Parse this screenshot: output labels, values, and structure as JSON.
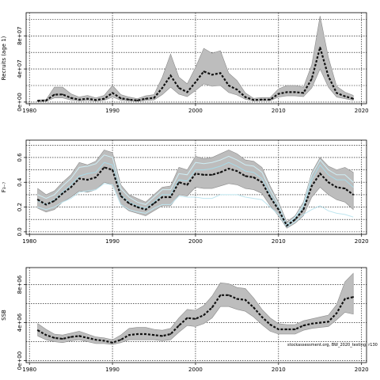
{
  "credit": "stockassessment.org, BW_2020_testing, r130",
  "chart_data": [
    {
      "type": "line",
      "ylabel": "Recruits (age 1)",
      "yticks": [
        0,
        40000000,
        80000000
      ],
      "yticks_minor": [
        20000000,
        60000000,
        100000000
      ],
      "ytick_labels": [
        "0e+00",
        "4e+07",
        "8e+07"
      ],
      "ylim": [
        -2000000,
        108000000
      ],
      "xlim": [
        1979.6,
        2020.6
      ],
      "xticks": [
        1980,
        1990,
        2000,
        2010,
        2020
      ],
      "xtick_labels": [
        "1980",
        "1990",
        "2000",
        "2010",
        "2020"
      ],
      "grid": true,
      "x": [
        1981,
        1982,
        1983,
        1984,
        1985,
        1986,
        1987,
        1988,
        1989,
        1990,
        1991,
        1992,
        1993,
        1994,
        1995,
        1996,
        1997,
        1998,
        1999,
        2000,
        2001,
        2002,
        2003,
        2004,
        2005,
        2006,
        2007,
        2008,
        2009,
        2010,
        2011,
        2012,
        2013,
        2014,
        2015,
        2016,
        2017,
        2018,
        2019
      ],
      "series": [
        {
          "role": "estimate",
          "values": [
            1500000,
            1800000,
            9000000,
            9200000,
            5000000,
            3000000,
            4000000,
            2500000,
            4000000,
            11000000,
            4500000,
            3000000,
            2000000,
            4000000,
            5000000,
            17000000,
            32000000,
            17000000,
            12000000,
            24000000,
            37000000,
            33000000,
            35000000,
            20000000,
            15000000,
            6000000,
            2500000,
            3000000,
            3000000,
            10000000,
            12000000,
            12000000,
            11000000,
            28000000,
            66000000,
            31000000,
            11000000,
            7000000,
            4000000
          ]
        },
        {
          "role": "upper",
          "values": [
            2500000,
            3000000,
            18000000,
            18000000,
            10000000,
            6000000,
            8000000,
            5000000,
            8000000,
            20000000,
            9000000,
            6000000,
            4000000,
            7500000,
            9000000,
            30000000,
            58000000,
            30000000,
            22000000,
            42000000,
            65000000,
            59000000,
            62000000,
            35000000,
            26000000,
            11000000,
            4500000,
            5500000,
            5500000,
            16000000,
            20000000,
            20000000,
            18000000,
            45000000,
            104000000,
            54000000,
            19000000,
            12000000,
            8000000
          ]
        },
        {
          "role": "lower",
          "values": [
            800000,
            1000000,
            5000000,
            5000000,
            2500000,
            1500000,
            2000000,
            1200000,
            2000000,
            6000000,
            2200000,
            1500000,
            1000000,
            2000000,
            2500000,
            9000000,
            18000000,
            9500000,
            6500000,
            14000000,
            22000000,
            19000000,
            20000000,
            11500000,
            8500000,
            3300000,
            1300000,
            1600000,
            1600000,
            6000000,
            7500000,
            7500000,
            6500000,
            17000000,
            40000000,
            18000000,
            6000000,
            4000000,
            2200000
          ]
        }
      ]
    },
    {
      "type": "line",
      "ylabel": "F₃₋₇",
      "yticks": [
        0.0,
        0.2,
        0.4,
        0.6
      ],
      "yticks_minor": [
        0.1,
        0.3,
        0.5,
        0.7
      ],
      "ytick_labels": [
        "0.0",
        "0.2",
        "0.4",
        "0.6"
      ],
      "ylim": [
        -0.02,
        0.74
      ],
      "xlim": [
        1979.6,
        2020.6
      ],
      "xticks": [
        1980,
        1990,
        2000,
        2010,
        2020
      ],
      "xtick_labels": [
        "1980",
        "1990",
        "2000",
        "2010",
        "2020"
      ],
      "grid": true,
      "x": [
        1981,
        1982,
        1983,
        1984,
        1985,
        1986,
        1987,
        1988,
        1989,
        1990,
        1991,
        1992,
        1993,
        1994,
        1995,
        1996,
        1997,
        1998,
        1999,
        2000,
        2001,
        2002,
        2003,
        2004,
        2005,
        2006,
        2007,
        2008,
        2009,
        2010,
        2011,
        2012,
        2013,
        2014,
        2015,
        2016,
        2017,
        2018,
        2019
      ],
      "series": [
        {
          "role": "estimate",
          "values": [
            0.26,
            0.22,
            0.25,
            0.31,
            0.36,
            0.43,
            0.42,
            0.44,
            0.52,
            0.5,
            0.29,
            0.23,
            0.2,
            0.18,
            0.23,
            0.28,
            0.28,
            0.4,
            0.38,
            0.47,
            0.46,
            0.46,
            0.48,
            0.51,
            0.49,
            0.45,
            0.44,
            0.4,
            0.28,
            0.18,
            0.05,
            0.1,
            0.18,
            0.37,
            0.47,
            0.4,
            0.36,
            0.35,
            0.3
          ]
        },
        {
          "role": "upper",
          "values": [
            0.35,
            0.3,
            0.33,
            0.4,
            0.46,
            0.56,
            0.54,
            0.57,
            0.66,
            0.64,
            0.38,
            0.3,
            0.27,
            0.24,
            0.3,
            0.36,
            0.37,
            0.52,
            0.5,
            0.61,
            0.59,
            0.6,
            0.63,
            0.66,
            0.63,
            0.58,
            0.57,
            0.52,
            0.37,
            0.24,
            0.08,
            0.13,
            0.24,
            0.48,
            0.6,
            0.53,
            0.5,
            0.52,
            0.48
          ]
        },
        {
          "role": "lower",
          "values": [
            0.19,
            0.16,
            0.18,
            0.24,
            0.28,
            0.33,
            0.32,
            0.34,
            0.4,
            0.38,
            0.22,
            0.17,
            0.15,
            0.13,
            0.17,
            0.21,
            0.21,
            0.3,
            0.29,
            0.36,
            0.35,
            0.35,
            0.37,
            0.39,
            0.38,
            0.35,
            0.34,
            0.31,
            0.21,
            0.13,
            0.03,
            0.07,
            0.13,
            0.28,
            0.36,
            0.3,
            0.26,
            0.24,
            0.18
          ]
        },
        {
          "role": "age-line",
          "color": "#bfe6f0",
          "values": [
            0.2,
            0.18,
            0.2,
            0.24,
            0.27,
            0.32,
            0.33,
            0.34,
            0.39,
            0.38,
            0.22,
            0.18,
            0.16,
            0.15,
            0.19,
            0.22,
            0.22,
            0.29,
            0.28,
            0.28,
            0.27,
            0.27,
            0.3,
            0.3,
            0.3,
            0.28,
            0.27,
            0.26,
            0.2,
            0.14,
            0.04,
            0.08,
            0.14,
            0.18,
            0.21,
            0.17,
            0.15,
            0.14,
            0.12
          ]
        },
        {
          "role": "age-line",
          "color": "#cfeef5",
          "values": [
            0.3,
            0.27,
            0.3,
            0.37,
            0.43,
            0.52,
            0.53,
            0.55,
            0.62,
            0.6,
            0.35,
            0.28,
            0.24,
            0.22,
            0.28,
            0.34,
            0.34,
            0.47,
            0.46,
            0.56,
            0.55,
            0.56,
            0.58,
            0.61,
            0.58,
            0.54,
            0.53,
            0.48,
            0.34,
            0.22,
            0.06,
            0.12,
            0.22,
            0.46,
            0.58,
            0.5,
            0.46,
            0.46,
            0.4
          ]
        },
        {
          "role": "age-line",
          "color": "#a8dbe8",
          "values": [
            0.25,
            0.22,
            0.26,
            0.32,
            0.38,
            0.45,
            0.47,
            0.48,
            0.56,
            0.54,
            0.3,
            0.24,
            0.21,
            0.19,
            0.24,
            0.3,
            0.3,
            0.42,
            0.41,
            0.5,
            0.5,
            0.51,
            0.53,
            0.56,
            0.53,
            0.49,
            0.48,
            0.43,
            0.3,
            0.19,
            0.05,
            0.11,
            0.2,
            0.42,
            0.54,
            0.46,
            0.42,
            0.42,
            0.36
          ]
        }
      ]
    },
    {
      "type": "line",
      "ylabel": "SSB",
      "yticks": [
        0,
        4000000,
        8000000
      ],
      "yticks_minor": [
        2000000,
        6000000
      ],
      "ytick_labels": [
        "0e+00",
        "4e+06",
        "8e+06"
      ],
      "ylim": [
        -200000,
        9800000
      ],
      "xlim": [
        1979.6,
        2020.6
      ],
      "xticks": [
        1980,
        1990,
        2000,
        2010,
        2020
      ],
      "xtick_labels": [
        "1980",
        "1990",
        "2000",
        "2010",
        "2020"
      ],
      "grid": true,
      "x": [
        1981,
        1982,
        1983,
        1984,
        1985,
        1986,
        1987,
        1988,
        1989,
        1990,
        1991,
        1992,
        1993,
        1994,
        1995,
        1996,
        1997,
        1998,
        1999,
        2000,
        2001,
        2002,
        2003,
        2004,
        2005,
        2006,
        2007,
        2008,
        2009,
        2010,
        2011,
        2012,
        2013,
        2014,
        2015,
        2016,
        2017,
        2018,
        2019
      ],
      "series": [
        {
          "role": "estimate",
          "values": [
            3200000,
            2700000,
            2400000,
            2300000,
            2500000,
            2600000,
            2400000,
            2200000,
            2100000,
            1900000,
            2200000,
            2700000,
            2800000,
            2800000,
            2700000,
            2600000,
            2800000,
            3700000,
            4500000,
            4400000,
            4800000,
            5600000,
            6900000,
            6900000,
            6500000,
            6400000,
            5600000,
            4600000,
            3800000,
            3300000,
            3300000,
            3300000,
            3700000,
            3900000,
            4000000,
            4100000,
            5000000,
            6500000,
            6700000
          ]
        },
        {
          "role": "upper",
          "values": [
            3900000,
            3300000,
            2800000,
            2700000,
            2900000,
            3100000,
            2800000,
            2500000,
            2400000,
            2200000,
            2700000,
            3400000,
            3500000,
            3500000,
            3300000,
            3200000,
            3400000,
            4500000,
            5400000,
            5300000,
            5800000,
            6800000,
            8200000,
            8100000,
            7700000,
            7600000,
            6600000,
            5400000,
            4500000,
            3900000,
            3800000,
            3800000,
            4200000,
            4400000,
            4600000,
            4800000,
            5900000,
            8300000,
            9200000
          ]
        },
        {
          "role": "lower",
          "values": [
            2600000,
            2200000,
            2000000,
            1900000,
            2100000,
            2200000,
            2000000,
            1800000,
            1800000,
            1700000,
            1900000,
            2200000,
            2200000,
            2200000,
            2200000,
            2100000,
            2200000,
            3000000,
            3700000,
            3600000,
            3900000,
            4500000,
            5700000,
            5700000,
            5400000,
            5200000,
            4600000,
            3800000,
            3100000,
            2800000,
            2800000,
            2800000,
            3200000,
            3400000,
            3500000,
            3600000,
            4300000,
            5100000,
            4900000
          ]
        }
      ]
    }
  ]
}
